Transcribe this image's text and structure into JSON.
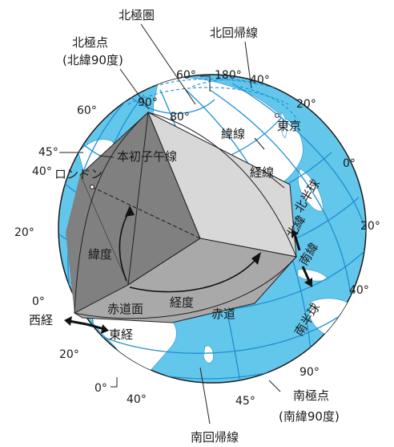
{
  "colors": {
    "ocean": "#63c7ec",
    "land": "#ffffff",
    "grid": "#1f8fd0",
    "cut_dark": "#808080",
    "cut_mid": "#a9a9a9",
    "cut_light": "#d8d8d8",
    "arrow": "#111111"
  },
  "labels": {
    "north_polar_circle": "北極圏",
    "north_pole": "北極点",
    "north_pole_lat": "(北緯90度)",
    "tropic_of_cancer": "北回帰線",
    "lat_60_tl": "60°",
    "lat_60_top": "60°",
    "lon_180": "180°",
    "lat_40_top": "40°",
    "lat_90": "90°",
    "lat_80": "80°",
    "lon_20_tr": "20°",
    "tokyo": "東京",
    "lon_45_left": "45°",
    "latitude_line": "緯線",
    "lat_40_left": "40°",
    "london": "ロンドン",
    "prime_meridian": "本初子午線",
    "longitude_line": "経線",
    "lat_0_right": "0°",
    "northern_hemisphere": "北半球",
    "lat_20_left": "20°",
    "lon_20_right": "20°",
    "north_latitude": "北緯",
    "south_latitude": "南緯",
    "latitude": "緯度",
    "lat_0_left": "0°",
    "equatorial_plane": "赤道面",
    "longitude": "経度",
    "equator": "赤道",
    "lon_40_right": "40°",
    "west_longitude": "西経",
    "east_longitude": "東経",
    "southern_hemisphere": "南半球",
    "lat_20_bl": "20°",
    "lat_90_s": "90°",
    "lon_0_bottom": "0°",
    "lon_40_bottom": "40°",
    "lon_45_bottom": "45°",
    "south_pole": "南極点",
    "south_pole_lat": "(南緯90度)",
    "tropic_of_capricorn": "南回帰線"
  }
}
